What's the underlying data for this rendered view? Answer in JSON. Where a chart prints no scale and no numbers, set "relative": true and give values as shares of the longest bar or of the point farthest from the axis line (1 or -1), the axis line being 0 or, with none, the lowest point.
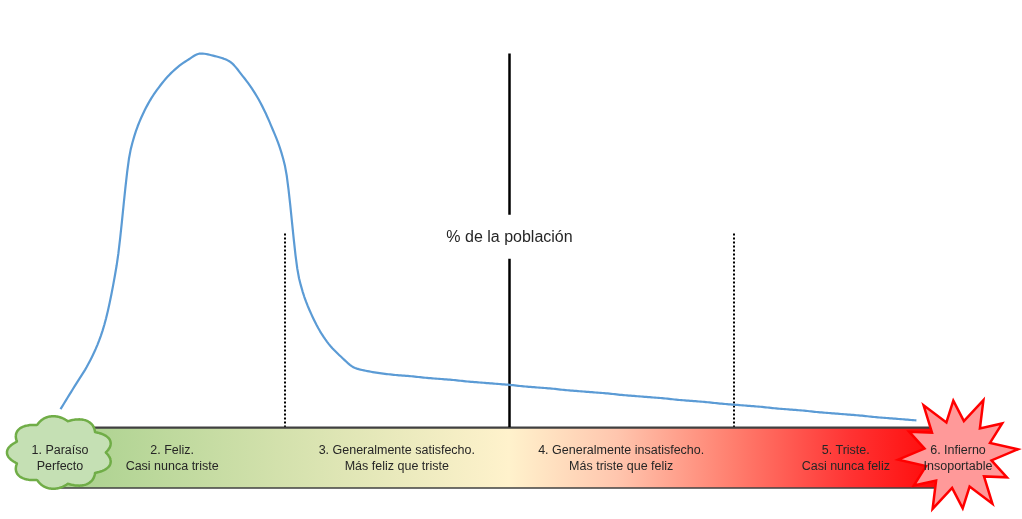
{
  "chart_data": {
    "type": "line",
    "relative": true,
    "ylabel": "% de la población",
    "categories": [
      "1. Paraíso\nPerfecto",
      null,
      null,
      null,
      null,
      null,
      null,
      null,
      "2. Feliz.\nCasi nunca triste",
      null,
      null,
      null,
      null,
      null,
      null,
      null,
      null,
      null,
      null,
      null,
      null,
      null,
      null,
      null,
      "3. Generalmente satisfecho.\nMás feliz que triste",
      null,
      null,
      null,
      null,
      null,
      null,
      null,
      null,
      null,
      null,
      null,
      null,
      null,
      null,
      null,
      "4. Generalmente insatisfecho.\nMás triste que feliz",
      null,
      null,
      null,
      null,
      null,
      null,
      null,
      null,
      null,
      null,
      null,
      null,
      null,
      null,
      null,
      "5. Triste.\nCasi nunca feliz",
      null,
      null,
      null,
      null,
      null,
      null,
      null,
      "6. Infierno\nInsoportable"
    ],
    "series": [
      {
        "color": "#5b9bd5",
        "values": [
          0.049,
          0.11,
          0.171,
          0.259,
          0.433,
          0.743,
          0.848,
          0.909,
          0.952,
          0.981,
          1.0,
          0.993,
          0.98,
          0.939,
          0.885,
          0.808,
          0.699,
          0.399,
          0.293,
          0.229,
          0.189,
          0.159,
          0.15,
          0.144,
          0.14,
          0.137,
          0.133,
          0.13,
          0.127,
          0.123,
          0.12,
          0.117,
          0.114,
          0.11,
          0.107,
          0.104,
          0.1,
          0.097,
          0.094,
          0.091,
          0.087,
          0.084,
          0.081,
          0.078,
          0.074,
          0.071,
          0.068,
          0.064,
          0.061,
          0.058,
          0.055,
          0.051,
          0.048,
          0.045,
          0.041,
          0.038,
          0.035,
          0.032,
          0.028,
          0.025,
          0.022,
          0.019,
          null,
          null,
          null
        ]
      }
    ]
  }
}
